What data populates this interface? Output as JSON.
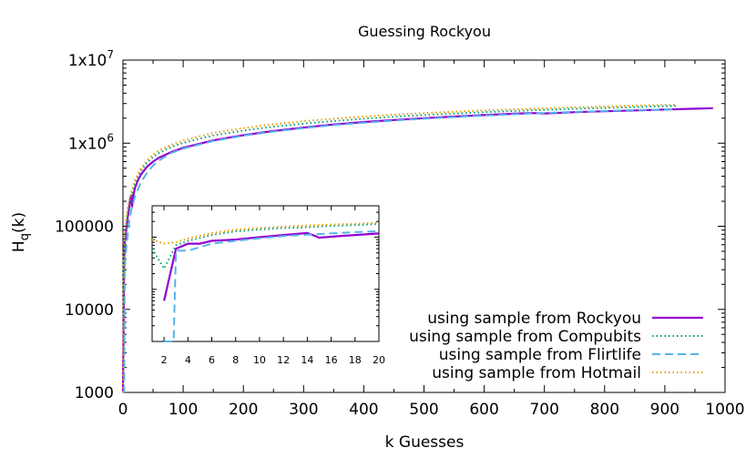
{
  "chart_data": {
    "type": "line",
    "title": "Guessing Rockyou",
    "xlabel": "k Guesses",
    "ylabel": "H",
    "ylabel_sub": "q",
    "ylabel_suffix": "(k)",
    "xlim": [
      0,
      1000
    ],
    "ylim": [
      1000,
      10000000
    ],
    "yscale": "log",
    "grid": false,
    "legend_position": "bottom-right",
    "x_ticks": [
      0,
      100,
      200,
      300,
      400,
      500,
      600,
      700,
      800,
      900,
      1000
    ],
    "y_ticks": [
      {
        "value": 1000,
        "label": "1000"
      },
      {
        "value": 10000,
        "label": "10000"
      },
      {
        "value": 100000,
        "label": "100000"
      },
      {
        "value": 1000000,
        "label": "1x10"
      },
      {
        "value": 10000000,
        "label": "1x10"
      }
    ],
    "y_tick_exponents": [
      "",
      "",
      "",
      "6",
      "7"
    ],
    "series": [
      {
        "name": "using sample from Rockyou",
        "color": "#9400d3",
        "style": "solid",
        "points": [
          [
            0,
            1000
          ],
          [
            1,
            6000
          ],
          [
            2,
            40000
          ],
          [
            3,
            65000
          ],
          [
            4,
            70000
          ],
          [
            6,
            100000
          ],
          [
            8,
            130000
          ],
          [
            10,
            160000
          ],
          [
            12,
            210000
          ],
          [
            14,
            240000
          ],
          [
            15,
            170000
          ],
          [
            17,
            230000
          ],
          [
            20,
            290000
          ],
          [
            25,
            360000
          ],
          [
            30,
            420000
          ],
          [
            40,
            520000
          ],
          [
            50,
            600000
          ],
          [
            60,
            670000
          ],
          [
            80,
            780000
          ],
          [
            100,
            880000
          ],
          [
            150,
            1080000
          ],
          [
            200,
            1250000
          ],
          [
            250,
            1400000
          ],
          [
            300,
            1540000
          ],
          [
            350,
            1680000
          ],
          [
            400,
            1800000
          ],
          [
            450,
            1900000
          ],
          [
            500,
            2000000
          ],
          [
            550,
            2090000
          ],
          [
            600,
            2180000
          ],
          [
            650,
            2260000
          ],
          [
            680,
            2300000
          ],
          [
            700,
            2280000
          ],
          [
            750,
            2360000
          ],
          [
            800,
            2420000
          ],
          [
            850,
            2480000
          ],
          [
            900,
            2540000
          ],
          [
            950,
            2600000
          ],
          [
            980,
            2640000
          ]
        ]
      },
      {
        "name": "using sample from Compubits",
        "color": "#009e73",
        "style": "dotted",
        "points": [
          [
            0,
            1000
          ],
          [
            1,
            40000
          ],
          [
            2,
            25000
          ],
          [
            3,
            60000
          ],
          [
            4,
            80000
          ],
          [
            6,
            110000
          ],
          [
            8,
            150000
          ],
          [
            10,
            180000
          ],
          [
            14,
            230000
          ],
          [
            20,
            320000
          ],
          [
            25,
            400000
          ],
          [
            30,
            470000
          ],
          [
            40,
            580000
          ],
          [
            50,
            680000
          ],
          [
            60,
            760000
          ],
          [
            80,
            900000
          ],
          [
            100,
            1010000
          ],
          [
            150,
            1240000
          ],
          [
            200,
            1420000
          ],
          [
            250,
            1580000
          ],
          [
            300,
            1720000
          ],
          [
            350,
            1850000
          ],
          [
            400,
            1970000
          ],
          [
            450,
            2080000
          ],
          [
            500,
            2180000
          ],
          [
            550,
            2270000
          ],
          [
            600,
            2360000
          ],
          [
            650,
            2440000
          ],
          [
            700,
            2520000
          ],
          [
            750,
            2590000
          ],
          [
            800,
            2660000
          ],
          [
            850,
            2720000
          ],
          [
            900,
            2790000
          ],
          [
            920,
            2810000
          ]
        ]
      },
      {
        "name": "using sample from Flirtlife",
        "color": "#56b4e9",
        "style": "dashed",
        "points": [
          [
            0,
            1000
          ],
          [
            1,
            1000
          ],
          [
            2,
            1000
          ],
          [
            3,
            30000
          ],
          [
            4,
            40000
          ],
          [
            6,
            60000
          ],
          [
            8,
            80000
          ],
          [
            10,
            110000
          ],
          [
            14,
            160000
          ],
          [
            20,
            230000
          ],
          [
            30,
            340000
          ],
          [
            40,
            440000
          ],
          [
            50,
            540000
          ],
          [
            60,
            620000
          ],
          [
            80,
            760000
          ],
          [
            100,
            860000
          ],
          [
            150,
            1060000
          ],
          [
            200,
            1230000
          ],
          [
            250,
            1380000
          ],
          [
            300,
            1520000
          ],
          [
            350,
            1650000
          ],
          [
            400,
            1760000
          ],
          [
            450,
            1870000
          ],
          [
            500,
            1970000
          ],
          [
            550,
            2060000
          ],
          [
            600,
            2150000
          ],
          [
            650,
            2230000
          ],
          [
            700,
            2310000
          ],
          [
            750,
            2380000
          ],
          [
            800,
            2440000
          ],
          [
            850,
            2500000
          ],
          [
            900,
            2550000
          ],
          [
            920,
            2570000
          ]
        ]
      },
      {
        "name": "using sample from Hotmail",
        "color": "#e69f00",
        "style": "dotted",
        "points": [
          [
            0,
            1000
          ],
          [
            1,
            50000
          ],
          [
            2,
            55000
          ],
          [
            3,
            70000
          ],
          [
            4,
            90000
          ],
          [
            6,
            130000
          ],
          [
            8,
            170000
          ],
          [
            10,
            200000
          ],
          [
            14,
            260000
          ],
          [
            20,
            360000
          ],
          [
            30,
            500000
          ],
          [
            40,
            620000
          ],
          [
            50,
            730000
          ],
          [
            60,
            820000
          ],
          [
            80,
            960000
          ],
          [
            100,
            1080000
          ],
          [
            150,
            1330000
          ],
          [
            200,
            1520000
          ],
          [
            250,
            1690000
          ],
          [
            300,
            1840000
          ],
          [
            350,
            1970000
          ],
          [
            400,
            2090000
          ],
          [
            450,
            2200000
          ],
          [
            500,
            2300000
          ],
          [
            550,
            2390000
          ],
          [
            600,
            2480000
          ],
          [
            650,
            2560000
          ],
          [
            700,
            2630000
          ],
          [
            750,
            2700000
          ],
          [
            800,
            2770000
          ],
          [
            850,
            2830000
          ],
          [
            900,
            2890000
          ],
          [
            920,
            2910000
          ]
        ]
      }
    ],
    "inset": {
      "xlim": [
        1,
        20
      ],
      "ylim": [
        1000,
        400000
      ],
      "yscale": "log",
      "x_ticks": [
        2,
        4,
        6,
        8,
        10,
        12,
        14,
        16,
        18,
        20
      ],
      "series": [
        {
          "points": [
            [
              2,
              6000
            ],
            [
              3,
              60000
            ],
            [
              4,
              75000
            ],
            [
              5,
              75000
            ],
            [
              6,
              85000
            ],
            [
              8,
              90000
            ],
            [
              10,
              100000
            ],
            [
              12,
              110000
            ],
            [
              14,
              120000
            ],
            [
              15,
              98000
            ],
            [
              17,
              106000
            ],
            [
              20,
              118000
            ]
          ]
        },
        {
          "points": [
            [
              1,
              60000
            ],
            [
              2,
              25000
            ],
            [
              3,
              70000
            ],
            [
              4,
              85000
            ],
            [
              6,
              110000
            ],
            [
              8,
              130000
            ],
            [
              10,
              140000
            ],
            [
              12,
              150000
            ],
            [
              14,
              155000
            ],
            [
              16,
              165000
            ],
            [
              18,
              170000
            ],
            [
              20,
              180000
            ]
          ]
        },
        {
          "points": [
            [
              2,
              800
            ],
            [
              2.8,
              800
            ],
            [
              3,
              55000
            ],
            [
              4,
              55000
            ],
            [
              6,
              75000
            ],
            [
              8,
              85000
            ],
            [
              10,
              95000
            ],
            [
              12,
              105000
            ],
            [
              14,
              112000
            ],
            [
              16,
              118000
            ],
            [
              18,
              125000
            ],
            [
              20,
              130000
            ]
          ]
        },
        {
          "points": [
            [
              1,
              90000
            ],
            [
              2,
              75000
            ],
            [
              3,
              80000
            ],
            [
              4,
              95000
            ],
            [
              6,
              120000
            ],
            [
              8,
              140000
            ],
            [
              10,
              150000
            ],
            [
              12,
              160000
            ],
            [
              14,
              168000
            ],
            [
              16,
              175000
            ],
            [
              18,
              180000
            ],
            [
              20,
              190000
            ]
          ]
        }
      ]
    }
  }
}
